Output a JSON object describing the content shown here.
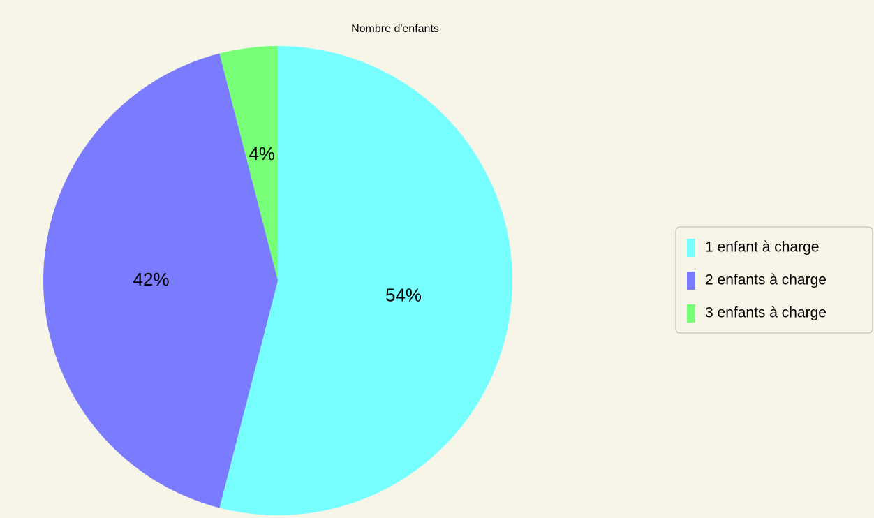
{
  "chart_data": {
    "type": "pie",
    "title": "Nombre d'enfants",
    "categories": [
      "1 enfant à charge",
      "2 enfants à charge",
      "3 enfants à charge"
    ],
    "values": [
      54,
      42,
      4
    ],
    "value_labels": [
      "54%",
      "42%",
      "4%"
    ],
    "colors": [
      "#77ffff",
      "#7b7bff",
      "#77ff77"
    ],
    "legend": "right"
  }
}
